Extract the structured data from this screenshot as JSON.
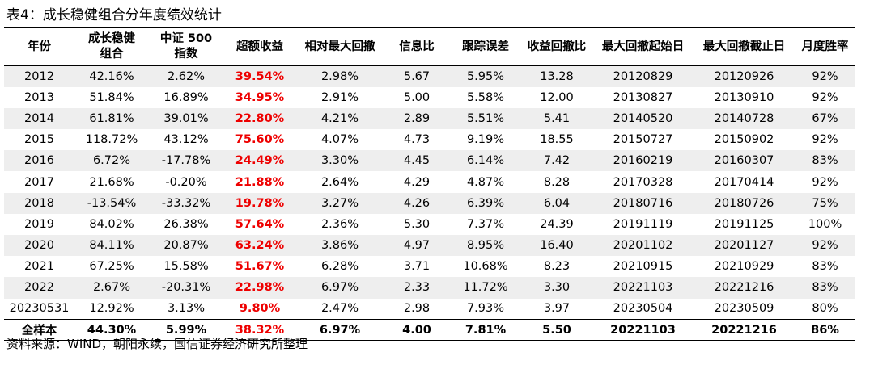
{
  "title": "表4：成长稳健组合分年度绩效统计",
  "headers": [
    {
      "line1": "年份",
      "line2": ""
    },
    {
      "line1": "成长稳健",
      "line2": "组合"
    },
    {
      "line1": "中证 500",
      "line2": "指数"
    },
    {
      "line1": "超额收益",
      "line2": ""
    },
    {
      "line1": "相对最大回撤",
      "line2": ""
    },
    {
      "line1": "信息比",
      "line2": ""
    },
    {
      "line1": "跟踪误差",
      "line2": ""
    },
    {
      "line1": "收益回撤比",
      "line2": ""
    },
    {
      "line1": "最大回撤起始日",
      "line2": ""
    },
    {
      "line1": "最大回撤截止日",
      "line2": ""
    },
    {
      "line1": "月度胜率",
      "line2": ""
    }
  ],
  "rows": [
    [
      "2012",
      "42.16%",
      "2.62%",
      "39.54%",
      "2.98%",
      "5.67",
      "5.95%",
      "13.28",
      "20120829",
      "20120926",
      "92%"
    ],
    [
      "2013",
      "51.84%",
      "16.89%",
      "34.95%",
      "2.91%",
      "5.00",
      "5.58%",
      "12.00",
      "20130827",
      "20130910",
      "92%"
    ],
    [
      "2014",
      "61.81%",
      "39.01%",
      "22.80%",
      "4.21%",
      "2.89",
      "5.51%",
      "5.41",
      "20140520",
      "20140728",
      "67%"
    ],
    [
      "2015",
      "118.72%",
      "43.12%",
      "75.60%",
      "4.07%",
      "4.73",
      "9.19%",
      "18.55",
      "20150727",
      "20150902",
      "92%"
    ],
    [
      "2016",
      "6.72%",
      "-17.78%",
      "24.49%",
      "3.30%",
      "4.45",
      "6.14%",
      "7.42",
      "20160219",
      "20160307",
      "83%"
    ],
    [
      "2017",
      "21.68%",
      "-0.20%",
      "21.88%",
      "2.64%",
      "4.29",
      "4.87%",
      "8.28",
      "20170328",
      "20170414",
      "92%"
    ],
    [
      "2018",
      "-13.54%",
      "-33.32%",
      "19.78%",
      "3.27%",
      "4.26",
      "6.39%",
      "6.04",
      "20180716",
      "20180726",
      "75%"
    ],
    [
      "2019",
      "84.02%",
      "26.38%",
      "57.64%",
      "2.36%",
      "5.30",
      "7.37%",
      "24.39",
      "20191119",
      "20191125",
      "100%"
    ],
    [
      "2020",
      "84.11%",
      "20.87%",
      "63.24%",
      "3.86%",
      "4.97",
      "8.95%",
      "16.40",
      "20201102",
      "20201127",
      "92%"
    ],
    [
      "2021",
      "67.25%",
      "15.58%",
      "51.67%",
      "6.28%",
      "3.71",
      "10.68%",
      "8.23",
      "20210915",
      "20210929",
      "83%"
    ],
    [
      "2022",
      "2.67%",
      "-20.31%",
      "22.98%",
      "6.97%",
      "2.33",
      "11.72%",
      "3.30",
      "20221103",
      "20221216",
      "83%"
    ],
    [
      "20230531",
      "12.92%",
      "3.13%",
      "9.80%",
      "2.47%",
      "2.98",
      "7.93%",
      "3.97",
      "20230504",
      "20230509",
      "80%"
    ]
  ],
  "summary": [
    "全样本",
    "44.30%",
    "5.99%",
    "38.32%",
    "6.97%",
    "4.00",
    "7.81%",
    "5.50",
    "20221103",
    "20221216",
    "86%"
  ],
  "source": "资料来源：WIND，朝阳永续，国信证券经济研究所整理",
  "colors": {
    "excess_return": "#ee0000",
    "alt_row": "#eeeeee"
  }
}
